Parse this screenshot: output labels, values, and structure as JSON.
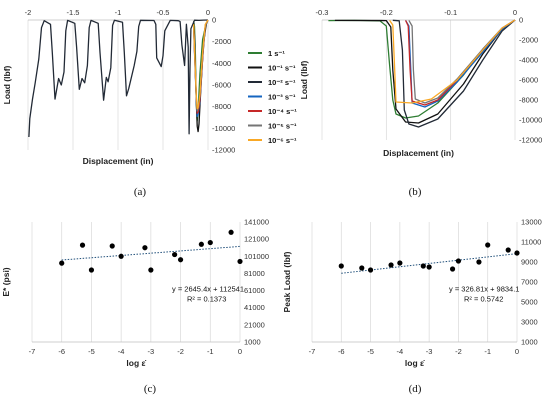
{
  "panels": [
    {
      "id": "a",
      "label": "(a)"
    },
    {
      "id": "b",
      "label": "(b)"
    },
    {
      "id": "c",
      "label": "(c)"
    },
    {
      "id": "d",
      "label": "(d)"
    }
  ],
  "chart_data": [
    {
      "id": "a",
      "type": "line",
      "xlabel": "Displacement (in)",
      "ylabel": "Load (lbf)",
      "xlim": [
        -2,
        0
      ],
      "ylim": [
        -12000,
        0
      ],
      "xticks": [
        -2,
        -1.5,
        -1,
        -0.5,
        0
      ],
      "yticks": [
        0,
        -2000,
        -4000,
        -6000,
        -8000,
        -10000,
        -12000
      ],
      "grid": "vertical",
      "legend_position": "right",
      "series": [
        {
          "name": "1 s⁻¹",
          "color": "#2e7d32",
          "points": [
            [
              0,
              0
            ],
            [
              -0.02,
              -300
            ],
            [
              -0.06,
              -1800
            ],
            [
              -0.09,
              -5000
            ],
            [
              -0.11,
              -8400
            ],
            [
              -0.12,
              -9300
            ],
            [
              -0.13,
              -7800
            ],
            [
              -0.14,
              -3200
            ],
            [
              -0.15,
              -600
            ],
            [
              -0.16,
              -100
            ]
          ]
        },
        {
          "name": "10⁻¹ s⁻¹",
          "color": "#111111",
          "points": [
            [
              0,
              0
            ],
            [
              -0.02,
              -400
            ],
            [
              -0.05,
              -2200
            ],
            [
              -0.08,
              -6400
            ],
            [
              -0.1,
              -9600
            ],
            [
              -0.11,
              -10300
            ],
            [
              -0.12,
              -9800
            ],
            [
              -0.135,
              -6000
            ],
            [
              -0.15,
              -1500
            ],
            [
              -0.16,
              -200
            ]
          ]
        },
        {
          "name": "10⁻² s⁻¹",
          "color": "#222a36",
          "points": [
            [
              0,
              0
            ],
            [
              -0.05,
              -5
            ],
            [
              -0.1,
              -40
            ],
            [
              -0.15,
              -20
            ],
            [
              -0.19,
              -800
            ],
            [
              -0.2,
              -4500
            ],
            [
              -0.21,
              -10500
            ],
            [
              -0.22,
              -2500
            ],
            [
              -0.24,
              -400
            ],
            [
              -0.26,
              -4200
            ],
            [
              -0.29,
              -2300
            ],
            [
              -0.31,
              -150
            ],
            [
              -0.33,
              -60
            ],
            [
              -0.42,
              -40
            ],
            [
              -0.48,
              -1000
            ],
            [
              -0.5,
              -3300
            ],
            [
              -0.52,
              -4300
            ],
            [
              -0.57,
              -3500
            ],
            [
              -0.58,
              -400
            ],
            [
              -0.6,
              -50
            ],
            [
              -0.75,
              -30
            ],
            [
              -0.77,
              -600
            ],
            [
              -0.79,
              -2900
            ],
            [
              -0.82,
              -4200
            ],
            [
              -0.88,
              -6300
            ],
            [
              -0.905,
              -7000
            ],
            [
              -0.93,
              -3000
            ],
            [
              -0.95,
              -200
            ],
            [
              -1.04,
              -30
            ],
            [
              -1.06,
              -500
            ],
            [
              -1.08,
              -4400
            ],
            [
              -1.11,
              -5700
            ],
            [
              -1.13,
              -5300
            ],
            [
              -1.16,
              -7400
            ],
            [
              -1.2,
              -3000
            ],
            [
              -1.22,
              -300
            ],
            [
              -1.3,
              -40
            ],
            [
              -1.32,
              -700
            ],
            [
              -1.34,
              -4200
            ],
            [
              -1.37,
              -5800
            ],
            [
              -1.4,
              -5400
            ],
            [
              -1.43,
              -6400
            ],
            [
              -1.46,
              -2500
            ],
            [
              -1.48,
              -300
            ],
            [
              -1.56,
              -40
            ],
            [
              -1.58,
              -1000
            ],
            [
              -1.6,
              -4800
            ],
            [
              -1.63,
              -6000
            ],
            [
              -1.66,
              -5400
            ],
            [
              -1.7,
              -7300
            ],
            [
              -1.73,
              -3000
            ],
            [
              -1.75,
              -400
            ],
            [
              -1.82,
              -60
            ],
            [
              -1.85,
              -700
            ],
            [
              -1.88,
              -3600
            ],
            [
              -1.92,
              -5800
            ],
            [
              -1.95,
              -7300
            ],
            [
              -1.98,
              -9100
            ],
            [
              -1.99,
              -10800
            ]
          ]
        },
        {
          "name": "10⁻³ s⁻¹",
          "color": "#1565c0",
          "points": [
            [
              0,
              0
            ],
            [
              -0.03,
              -500
            ],
            [
              -0.06,
              -3500
            ],
            [
              -0.09,
              -7600
            ],
            [
              -0.11,
              -8700
            ],
            [
              -0.12,
              -8900
            ],
            [
              -0.13,
              -7400
            ],
            [
              -0.15,
              -3000
            ],
            [
              -0.16,
              -500
            ]
          ]
        },
        {
          "name": "10⁻⁴ s⁻¹",
          "color": "#c62828",
          "points": [
            [
              0,
              0
            ],
            [
              -0.03,
              -500
            ],
            [
              -0.06,
              -3600
            ],
            [
              -0.09,
              -7400
            ],
            [
              -0.11,
              -8500
            ],
            [
              -0.12,
              -8600
            ],
            [
              -0.13,
              -7200
            ],
            [
              -0.15,
              -2800
            ],
            [
              -0.16,
              -500
            ]
          ]
        },
        {
          "name": "10⁻⁵ s⁻¹",
          "color": "#757575",
          "points": [
            [
              0,
              0
            ],
            [
              -0.03,
              -500
            ],
            [
              -0.06,
              -3300
            ],
            [
              -0.09,
              -7000
            ],
            [
              -0.11,
              -8200
            ],
            [
              -0.12,
              -8400
            ],
            [
              -0.13,
              -7100
            ],
            [
              -0.15,
              -2700
            ],
            [
              -0.16,
              -500
            ]
          ]
        },
        {
          "name": "10⁻⁶ s⁻¹",
          "color": "#f9a825",
          "points": [
            [
              0,
              0
            ],
            [
              -0.03,
              -400
            ],
            [
              -0.06,
              -3000
            ],
            [
              -0.09,
              -6900
            ],
            [
              -0.11,
              -8100
            ],
            [
              -0.12,
              -8200
            ],
            [
              -0.13,
              -7000
            ],
            [
              -0.15,
              -2600
            ],
            [
              -0.16,
              -400
            ]
          ]
        }
      ]
    },
    {
      "id": "b",
      "type": "line",
      "xlabel": "Displacement (in)",
      "ylabel": "Load (lbf)",
      "xlim": [
        -0.3,
        0
      ],
      "ylim": [
        -12000,
        0
      ],
      "xticks": [
        -0.3,
        -0.2,
        -0.1,
        0
      ],
      "yticks": [
        0,
        -2000,
        -4000,
        -6000,
        -8000,
        -10000,
        -12000
      ],
      "grid": "vertical",
      "series": [
        {
          "name": "1 s⁻¹",
          "color": "#2e7d32",
          "points": [
            [
              -0.29,
              -60
            ],
            [
              -0.25,
              -40
            ],
            [
              -0.21,
              -80
            ],
            [
              -0.2,
              -600
            ],
            [
              -0.195,
              -4500
            ],
            [
              -0.19,
              -8000
            ],
            [
              -0.185,
              -9400
            ],
            [
              -0.17,
              -9800
            ],
            [
              -0.15,
              -9600
            ],
            [
              -0.12,
              -8300
            ],
            [
              -0.08,
              -5500
            ],
            [
              -0.05,
              -3000
            ],
            [
              -0.02,
              -900
            ],
            [
              0,
              0
            ]
          ]
        },
        {
          "name": "10⁻¹ s⁻¹",
          "color": "#111111",
          "points": [
            [
              -0.28,
              -40
            ],
            [
              -0.2,
              -60
            ],
            [
              -0.193,
              -700
            ],
            [
              -0.19,
              -5000
            ],
            [
              -0.185,
              -8900
            ],
            [
              -0.17,
              -10200
            ],
            [
              -0.15,
              -10300
            ],
            [
              -0.12,
              -9400
            ],
            [
              -0.08,
              -6400
            ],
            [
              -0.05,
              -3400
            ],
            [
              -0.02,
              -900
            ],
            [
              0,
              0
            ]
          ]
        },
        {
          "name": "10⁻² s⁻¹",
          "color": "#222a36",
          "points": [
            [
              -0.19,
              -30
            ],
            [
              -0.18,
              -80
            ],
            [
              -0.175,
              -3000
            ],
            [
              -0.172,
              -9000
            ],
            [
              -0.165,
              -10400
            ],
            [
              -0.15,
              -10700
            ],
            [
              -0.12,
              -9900
            ],
            [
              -0.08,
              -7100
            ],
            [
              -0.05,
              -4000
            ],
            [
              -0.02,
              -1100
            ],
            [
              0,
              0
            ]
          ]
        },
        {
          "name": "10⁻³ s⁻¹",
          "color": "#1565c0",
          "points": [
            [
              -0.17,
              -40
            ],
            [
              -0.165,
              -600
            ],
            [
              -0.162,
              -5000
            ],
            [
              -0.16,
              -8300
            ],
            [
              -0.14,
              -8700
            ],
            [
              -0.12,
              -8100
            ],
            [
              -0.09,
              -6200
            ],
            [
              -0.05,
              -3200
            ],
            [
              -0.02,
              -900
            ],
            [
              0,
              0
            ]
          ]
        },
        {
          "name": "10⁻⁴ s⁻¹",
          "color": "#c62828",
          "points": [
            [
              -0.17,
              -40
            ],
            [
              -0.166,
              -600
            ],
            [
              -0.163,
              -5000
            ],
            [
              -0.16,
              -8100
            ],
            [
              -0.14,
              -8500
            ],
            [
              -0.12,
              -8000
            ],
            [
              -0.09,
              -6000
            ],
            [
              -0.05,
              -3000
            ],
            [
              -0.02,
              -800
            ],
            [
              0,
              0
            ]
          ]
        },
        {
          "name": "10⁻⁵ s⁻¹",
          "color": "#757575",
          "points": [
            [
              -0.165,
              -40
            ],
            [
              -0.16,
              -600
            ],
            [
              -0.158,
              -5000
            ],
            [
              -0.155,
              -7900
            ],
            [
              -0.14,
              -8300
            ],
            [
              -0.12,
              -7800
            ],
            [
              -0.09,
              -5900
            ],
            [
              -0.05,
              -2900
            ],
            [
              -0.02,
              -800
            ],
            [
              0,
              0
            ]
          ]
        },
        {
          "name": "10⁻⁶ s⁻¹",
          "color": "#f9a825",
          "points": [
            [
              -0.195,
              -40
            ],
            [
              -0.19,
              -500
            ],
            [
              -0.187,
              -5000
            ],
            [
              -0.185,
              -8200
            ],
            [
              -0.16,
              -8300
            ],
            [
              -0.13,
              -7900
            ],
            [
              -0.09,
              -6000
            ],
            [
              -0.05,
              -3000
            ],
            [
              -0.02,
              -800
            ],
            [
              0,
              0
            ]
          ]
        }
      ]
    },
    {
      "id": "c",
      "type": "scatter",
      "xlabel": "log ε̇",
      "ylabel": "E* (psi)",
      "xlim": [
        -7,
        0
      ],
      "ylim": [
        1000,
        141000
      ],
      "xticks": [
        -7,
        -6,
        -5,
        -4,
        -3,
        -2,
        -1,
        0
      ],
      "yticks": [
        1000,
        21000,
        41000,
        61000,
        81000,
        101000,
        121000,
        141000
      ],
      "grid": "vertical",
      "annotation": [
        "y = 2645.4x + 112541",
        "R² = 0.1373"
      ],
      "points": [
        [
          -6,
          93000
        ],
        [
          -5.3,
          114000
        ],
        [
          -5,
          85000
        ],
        [
          -4.3,
          113000
        ],
        [
          -4,
          101000
        ],
        [
          -3.2,
          111000
        ],
        [
          -3,
          85000
        ],
        [
          -2.2,
          103000
        ],
        [
          -2,
          97000
        ],
        [
          -1.3,
          115000
        ],
        [
          -1,
          117000
        ],
        [
          -0.3,
          129000
        ],
        [
          0,
          95000
        ]
      ],
      "trendline": {
        "slope": 2645.4,
        "intercept": 112541,
        "x_range": [
          -6,
          0
        ]
      }
    },
    {
      "id": "d",
      "type": "scatter",
      "xlabel": "log ε̇",
      "ylabel": "Peak Load (lbf)",
      "xlim": [
        -7,
        0
      ],
      "ylim": [
        1000,
        13000
      ],
      "xticks": [
        -7,
        -6,
        -5,
        -4,
        -3,
        -2,
        -1,
        0
      ],
      "yticks": [
        1000,
        3000,
        5000,
        7000,
        9000,
        11000,
        13000
      ],
      "grid": "vertical",
      "annotation": [
        "y = 326.81x + 9834.1",
        "R² = 0.5742"
      ],
      "points": [
        [
          -6,
          8600
        ],
        [
          -5.3,
          8400
        ],
        [
          -5,
          8200
        ],
        [
          -4.3,
          8700
        ],
        [
          -4,
          8900
        ],
        [
          -3.2,
          8600
        ],
        [
          -3,
          8500
        ],
        [
          -2.2,
          8300
        ],
        [
          -2,
          9100
        ],
        [
          -1.3,
          9000
        ],
        [
          -1,
          10700
        ],
        [
          -0.3,
          10200
        ],
        [
          0,
          9900
        ]
      ],
      "trendline": {
        "slope": 326.81,
        "intercept": 9834.1,
        "x_range": [
          -6,
          0
        ]
      }
    }
  ]
}
